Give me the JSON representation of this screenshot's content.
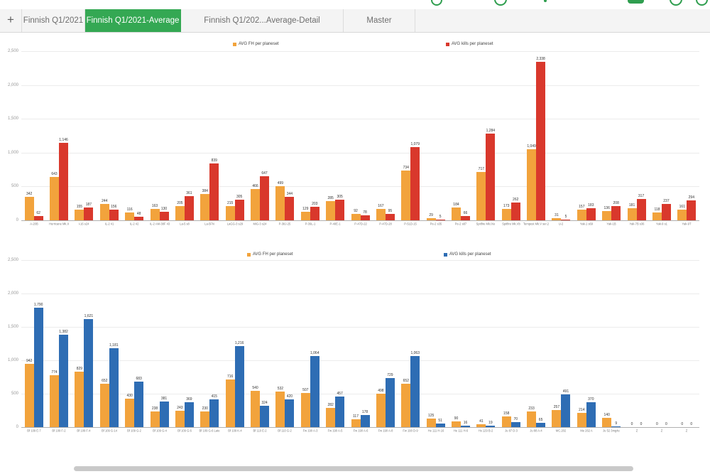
{
  "tabs": {
    "add_label": "+",
    "items": [
      {
        "label": "Finnish Q1/2021",
        "active": false
      },
      {
        "label": "Finnish Q1/2021-Average",
        "active": true
      },
      {
        "label": "Finnish Q1/202...Average-Detail",
        "active": false
      },
      {
        "label": "Master",
        "active": false
      }
    ]
  },
  "colors": {
    "tab_active_bg": "#34a853",
    "toolbar_icon_green": "#2f9e4f",
    "orange": "#f2a33c",
    "red": "#d9382c",
    "blue": "#2e6db4",
    "gridline": "#ececec"
  },
  "chart_data": [
    {
      "type": "bar",
      "title": "",
      "grid": true,
      "legend_position": "top",
      "ylim": [
        0,
        2500
      ],
      "ytick_step": 500,
      "ytick_labels": [
        "0",
        "500",
        "1,000",
        "1,500",
        "2,000",
        "2,500"
      ],
      "legend": [
        {
          "name": "AVG FH per planeset",
          "color": "#f2a33c"
        },
        {
          "name": "AVG kills per planeset",
          "color": "#d9382c"
        }
      ],
      "categories": [
        "A-20B",
        "Hurricane Mk.II",
        "I-16 s24",
        "IL-2 41",
        "IL-2 42",
        "IL-2 AM-38F 43",
        "La-5 s8",
        "La-5FN",
        "LaGG-3 s29",
        "MiG-3 s24",
        "P-38J-25",
        "P-39L-1",
        "P-40E-1",
        "P-47D-22",
        "P-47D-28",
        "P-51D-15",
        "Pe-2 s35",
        "Pe-2 s87",
        "Spitfire Mk.IXe",
        "Spitfire Mk.Vb",
        "Tempest Mk.V ser.2",
        "U-2",
        "Yak-1 s69",
        "Yak-1B",
        "Yak-7B s36",
        "Yak-9 s1",
        "Yak-9T"
      ],
      "series": [
        {
          "name": "AVG FH per planeset",
          "color": "#f2a33c",
          "values": [
            342,
            643,
            155,
            244,
            116,
            163,
            205,
            384,
            215,
            466,
            499,
            129,
            285,
            92,
            167,
            734,
            29,
            184,
            717,
            173,
            1049,
            31,
            157,
            136,
            181,
            118,
            161
          ]
        },
        {
          "name": "AVG kills per planeset",
          "color": "#d9382c",
          "values": [
            62,
            1146,
            187,
            156,
            48,
            130,
            361,
            839,
            305,
            647,
            344,
            203,
            305,
            78,
            95,
            1079,
            5,
            66,
            1284,
            262,
            2338,
            5,
            183,
            208,
            317,
            237,
            294
          ]
        }
      ]
    },
    {
      "type": "bar",
      "title": "",
      "grid": true,
      "legend_position": "top",
      "ylim": [
        0,
        2500
      ],
      "ytick_step": 500,
      "ytick_labels": [
        "0",
        "500",
        "1,000",
        "1,500",
        "2,000",
        "2,500"
      ],
      "legend": [
        {
          "name": "AVG FH per planeset",
          "color": "#f2a33c"
        },
        {
          "name": "AVG kills per planeset",
          "color": "#2e6db4"
        }
      ],
      "categories": [
        "Bf 109 E-7",
        "Bf 109 F-2",
        "Bf 109 F-4",
        "Bf 109 G-14",
        "Bf 109 G-2",
        "Bf 109 G-4",
        "Bf 109 G-6",
        "Bf 109 G-6 Late",
        "Bf 109 K-4",
        "Bf 110 E-2",
        "Bf 110 G-2",
        "Fw 190 A-3",
        "Fw 190 A-5",
        "Fw 190 A-6",
        "Fw 190 A-8",
        "Fw 190 D-9",
        "He 111 H-16",
        "He 111 H-6",
        "Hs 129 B-2",
        "Ju 87 D-3",
        "Ju 88 A-4",
        "MC.202",
        "Me 262 A",
        "Ju 52 3mg4e",
        "Z",
        "Z",
        "Z"
      ],
      "series": [
        {
          "name": "AVG FH per planeset",
          "color": "#f2a33c",
          "values": [
            942,
            774,
            829,
            652,
            430,
            238,
            243,
            230,
            716,
            540,
            532,
            507,
            282,
            117,
            498,
            652,
            125,
            90,
            41,
            158,
            233,
            257,
            214,
            140,
            0,
            0,
            0
          ]
        },
        {
          "name": "AVG kills per planeset",
          "color": "#2e6db4",
          "values": [
            1790,
            1382,
            1621,
            1181,
            683,
            381,
            369,
            415,
            1216,
            324,
            420,
            1064,
            457,
            178,
            729,
            1063,
            51,
            16,
            19,
            70,
            65,
            491,
            370,
            9,
            0,
            0,
            0
          ]
        }
      ]
    }
  ]
}
